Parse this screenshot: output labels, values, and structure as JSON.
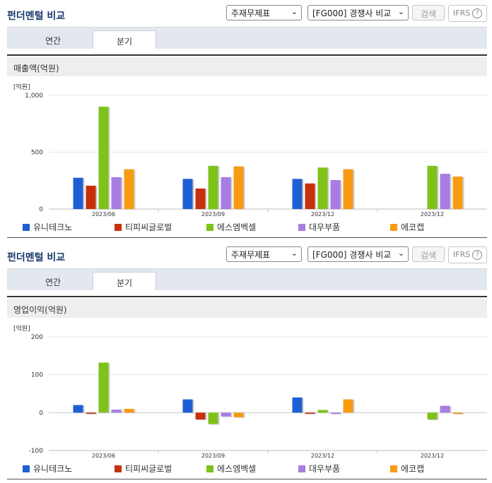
{
  "panels": [
    {
      "title": "펀더멘털 비교",
      "select_statement": "주재무제표",
      "select_compare": "[FG000] 경쟁사 비교",
      "search_label": "검색",
      "ifrs_label": "IFRS",
      "help_icon": "?",
      "tabs": [
        "연간",
        "분기"
      ],
      "active_tab": 1,
      "subtitle": "매출액(억원)"
    },
    {
      "title": "펀더멘털 비교",
      "select_statement": "주재무제표",
      "select_compare": "[FG000] 경쟁사 비교",
      "search_label": "검색",
      "ifrs_label": "IFRS",
      "help_icon": "?",
      "tabs": [
        "연간",
        "분기"
      ],
      "active_tab": 1,
      "subtitle": "영업이익(억원)"
    }
  ],
  "chart_data": [
    {
      "type": "bar",
      "unit_label": "[억원]",
      "categories": [
        "2023/06",
        "2023/09",
        "2023/12",
        "2023/12"
      ],
      "ylim": [
        0,
        1000
      ],
      "yticks": [
        "0",
        "500",
        "1,000"
      ],
      "ytick_values": [
        0,
        500,
        1000
      ],
      "series": [
        {
          "name": "유니테크노",
          "color": "#1f5fd6",
          "values": [
            275,
            265,
            265,
            null
          ]
        },
        {
          "name": "티피씨글로벌",
          "color": "#c8300c",
          "values": [
            205,
            180,
            225,
            null
          ]
        },
        {
          "name": "에스엠벡셀",
          "color": "#7ec21a",
          "values": [
            900,
            380,
            365,
            380
          ]
        },
        {
          "name": "대우부품",
          "color": "#a77ee0",
          "values": [
            280,
            280,
            255,
            310
          ]
        },
        {
          "name": "에코캡",
          "color": "#f79b13",
          "values": [
            350,
            375,
            350,
            285
          ]
        }
      ]
    },
    {
      "type": "bar",
      "unit_label": "[억원]",
      "categories": [
        "2023/06",
        "2023/09",
        "2023/12",
        "2023/12"
      ],
      "ylim": [
        -100,
        200
      ],
      "yticks": [
        "-100",
        "0",
        "100",
        "200"
      ],
      "ytick_values": [
        -100,
        0,
        100,
        200
      ],
      "series": [
        {
          "name": "유니테크노",
          "color": "#1f5fd6",
          "values": [
            20,
            35,
            40,
            null
          ]
        },
        {
          "name": "티피씨글로벌",
          "color": "#c8300c",
          "values": [
            -3,
            -18,
            -3,
            null
          ]
        },
        {
          "name": "에스엠벡셀",
          "color": "#7ec21a",
          "values": [
            132,
            -30,
            7,
            -18
          ]
        },
        {
          "name": "대우부품",
          "color": "#a77ee0",
          "values": [
            8,
            -10,
            -3,
            18
          ]
        },
        {
          "name": "에코캡",
          "color": "#f79b13",
          "values": [
            10,
            -12,
            35,
            -3
          ]
        }
      ]
    }
  ]
}
